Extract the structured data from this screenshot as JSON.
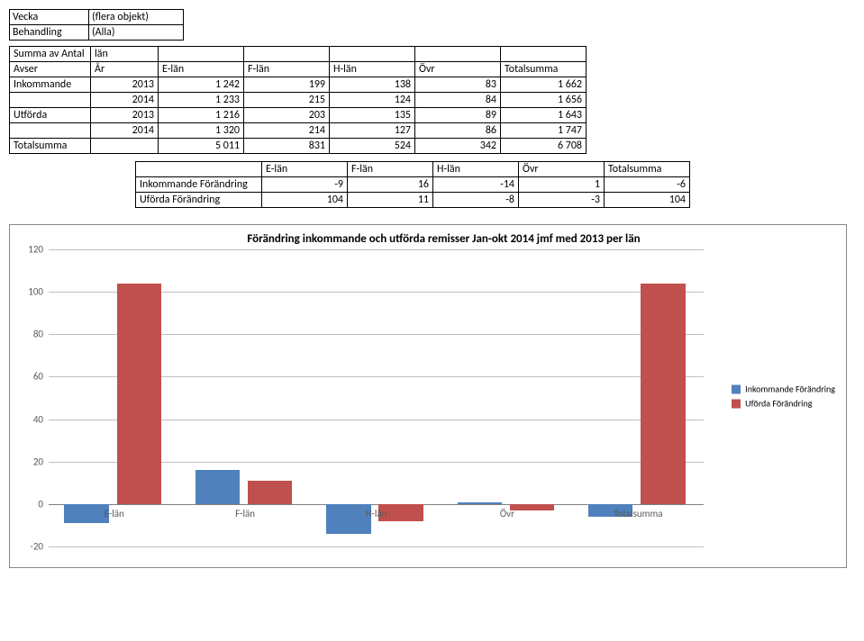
{
  "filters": {
    "vecka_label": "Vecka",
    "vecka_value": "(flera objekt)",
    "behandling_label": "Behandling",
    "behandling_value": "(Alla)"
  },
  "main_table": {
    "header1": {
      "summa": "Summa av Antal",
      "lan": "län"
    },
    "header2": {
      "avser": "Avser",
      "ar": "År",
      "c": [
        "E-län",
        "F-län",
        "H-län",
        "Övr",
        "Totalsumma"
      ]
    },
    "rows": [
      {
        "avser": "Inkommande",
        "ar": "2013",
        "v": [
          "1 242",
          "199",
          "138",
          "83",
          "1 662"
        ]
      },
      {
        "avser": "",
        "ar": "2014",
        "v": [
          "1 233",
          "215",
          "124",
          "84",
          "1 656"
        ]
      },
      {
        "avser": "Utförda",
        "ar": "2013",
        "v": [
          "1 216",
          "203",
          "135",
          "89",
          "1 643"
        ]
      },
      {
        "avser": "",
        "ar": "2014",
        "v": [
          "1 320",
          "214",
          "127",
          "86",
          "1 747"
        ]
      },
      {
        "avser": "Totalsumma",
        "ar": "",
        "v": [
          "5 011",
          "831",
          "524",
          "342",
          "6 708"
        ]
      }
    ]
  },
  "change_table": {
    "headers": [
      "E-län",
      "F-län",
      "H-län",
      "Övr",
      "Totalsumma"
    ],
    "rows": [
      {
        "label": "Inkommande Förändring",
        "v": [
          "-9",
          "16",
          "-14",
          "1",
          "-6"
        ]
      },
      {
        "label": "Uförda Förändring",
        "v": [
          "104",
          "11",
          "-8",
          "-3",
          "104"
        ]
      }
    ]
  },
  "chart": {
    "title": "Förändring inkommande och utförda remisser Jan-okt 2014 jmf med 2013 per län",
    "ylim_min": -20,
    "ylim_max": 120,
    "ytick_step": 20,
    "yticks": [
      -20,
      0,
      20,
      40,
      60,
      80,
      100,
      120
    ],
    "categories": [
      "E-län",
      "F-län",
      "H-län",
      "Övr",
      "Totalsumma"
    ],
    "series": [
      {
        "name": "Inkommande Förändring",
        "color": "#4f81bd",
        "values": [
          -9,
          16,
          -14,
          1,
          -6
        ]
      },
      {
        "name": "Uförda Förändring",
        "color": "#c0504d",
        "values": [
          104,
          11,
          -8,
          -3,
          104
        ]
      }
    ],
    "grid_color": "#bfbfbf",
    "background": "#ffffff"
  }
}
